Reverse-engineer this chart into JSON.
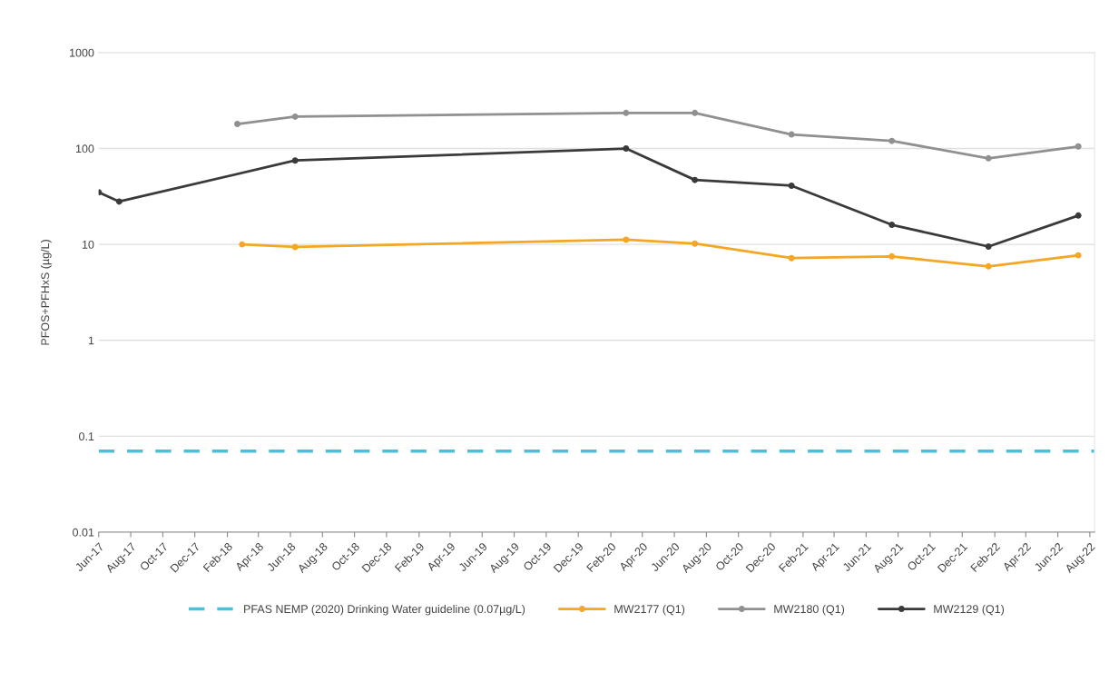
{
  "chart_data": {
    "type": "line",
    "ylabel": "PFOS+PFHxS (µg/L)",
    "log": "y",
    "ylim": [
      0.01,
      1000
    ],
    "yticks": [
      0.01,
      0.1,
      1,
      10,
      100,
      1000
    ],
    "xlim": [
      "2017-06-01",
      "2022-08-10"
    ],
    "xticks": [
      {
        "value": "2017-06-01",
        "label": "Jun-17"
      },
      {
        "value": "2017-08-01",
        "label": "Aug-17"
      },
      {
        "value": "2017-10-01",
        "label": "Oct-17"
      },
      {
        "value": "2017-12-01",
        "label": "Dec-17"
      },
      {
        "value": "2018-02-01",
        "label": "Feb-18"
      },
      {
        "value": "2018-04-01",
        "label": "Apr-18"
      },
      {
        "value": "2018-06-01",
        "label": "Jun-18"
      },
      {
        "value": "2018-08-01",
        "label": "Aug-18"
      },
      {
        "value": "2018-10-01",
        "label": "Oct-18"
      },
      {
        "value": "2018-12-01",
        "label": "Dec-18"
      },
      {
        "value": "2019-02-01",
        "label": "Feb-19"
      },
      {
        "value": "2019-04-01",
        "label": "Apr-19"
      },
      {
        "value": "2019-06-01",
        "label": "Jun-19"
      },
      {
        "value": "2019-08-01",
        "label": "Aug-19"
      },
      {
        "value": "2019-10-01",
        "label": "Oct-19"
      },
      {
        "value": "2019-12-01",
        "label": "Dec-19"
      },
      {
        "value": "2020-02-01",
        "label": "Feb-20"
      },
      {
        "value": "2020-04-01",
        "label": "Apr-20"
      },
      {
        "value": "2020-06-01",
        "label": "Jun-20"
      },
      {
        "value": "2020-08-01",
        "label": "Aug-20"
      },
      {
        "value": "2020-10-01",
        "label": "Oct-20"
      },
      {
        "value": "2020-12-01",
        "label": "Dec-20"
      },
      {
        "value": "2021-02-01",
        "label": "Feb-21"
      },
      {
        "value": "2021-04-01",
        "label": "Apr-21"
      },
      {
        "value": "2021-06-01",
        "label": "Jun-21"
      },
      {
        "value": "2021-08-01",
        "label": "Aug-21"
      },
      {
        "value": "2021-10-01",
        "label": "Oct-21"
      },
      {
        "value": "2021-12-01",
        "label": "Dec-21"
      },
      {
        "value": "2022-02-01",
        "label": "Feb-22"
      },
      {
        "value": "2022-04-01",
        "label": "Apr-22"
      },
      {
        "value": "2022-06-01",
        "label": "Jun-22"
      },
      {
        "value": "2022-08-01",
        "label": "Aug-22"
      }
    ],
    "grid": "y",
    "legend": "bottom",
    "marker": "circle",
    "ref_lines": [
      {
        "axis": "y",
        "value": 0.07,
        "label": "PFAS NEMP (2020) Drinking Water guideline (0.07µg/L)",
        "color": "#4bc0d9",
        "line_style": "dashed"
      }
    ],
    "series": [
      {
        "name": "MW2177 (Q1)",
        "color": "#f5a623",
        "x": [
          "2018-03-01",
          "2018-06-10",
          "2020-03-01",
          "2020-07-10",
          "2021-01-10",
          "2021-07-20",
          "2022-01-20",
          "2022-07-10"
        ],
        "values": [
          10,
          9.4,
          11.2,
          10.2,
          7.2,
          7.5,
          5.9,
          7.7
        ]
      },
      {
        "name": "MW2180 (Q1)",
        "color": "#909090",
        "x": [
          "2018-02-20",
          "2018-06-10",
          "2020-03-01",
          "2020-07-10",
          "2021-01-10",
          "2021-07-20",
          "2022-01-20",
          "2022-07-10"
        ],
        "values": [
          180,
          215,
          235,
          235,
          140,
          120,
          79,
          105
        ]
      },
      {
        "name": "MW2129 (Q1)",
        "color": "#3a3a3a",
        "x": [
          "2017-06-01",
          "2017-07-10",
          "2018-06-10",
          "2020-03-01",
          "2020-07-10",
          "2021-01-10",
          "2021-07-20",
          "2022-01-20",
          "2022-07-10"
        ],
        "values": [
          35,
          28,
          75,
          100,
          47,
          41,
          16,
          9.5,
          20
        ]
      }
    ]
  }
}
